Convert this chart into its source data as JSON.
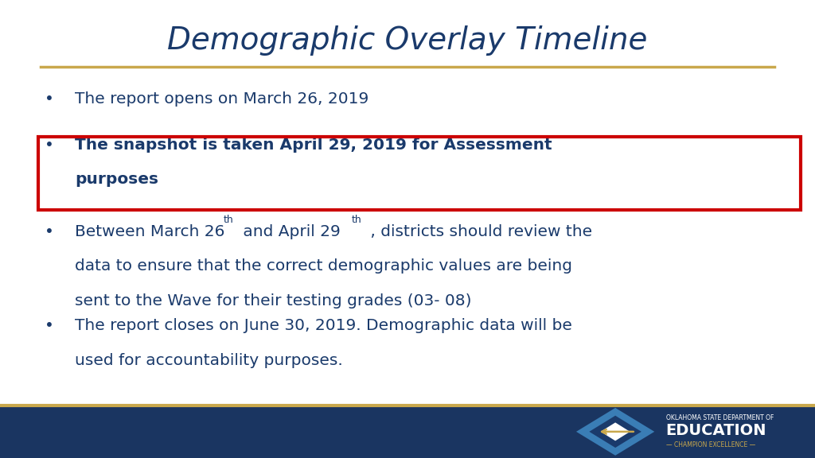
{
  "title": "Demographic Overlay Timeline",
  "title_color": "#1a3a6b",
  "title_fontsize": 28,
  "separator_color": "#c9a84c",
  "background_color": "#ffffff",
  "bullet_color": "#1a3a6b",
  "text_color": "#1a3a6b",
  "highlight_box_color": "#cc0000",
  "footer_color": "#1a3561",
  "logo_accent_color": "#c9a84c",
  "logo_text_top": "OKLAHOMA STATE DEPARTMENT OF",
  "logo_text_main": "EDUCATION",
  "logo_text_bottom": "CHAMPION EXCELLENCE",
  "logo_text_color": "#ffffff"
}
